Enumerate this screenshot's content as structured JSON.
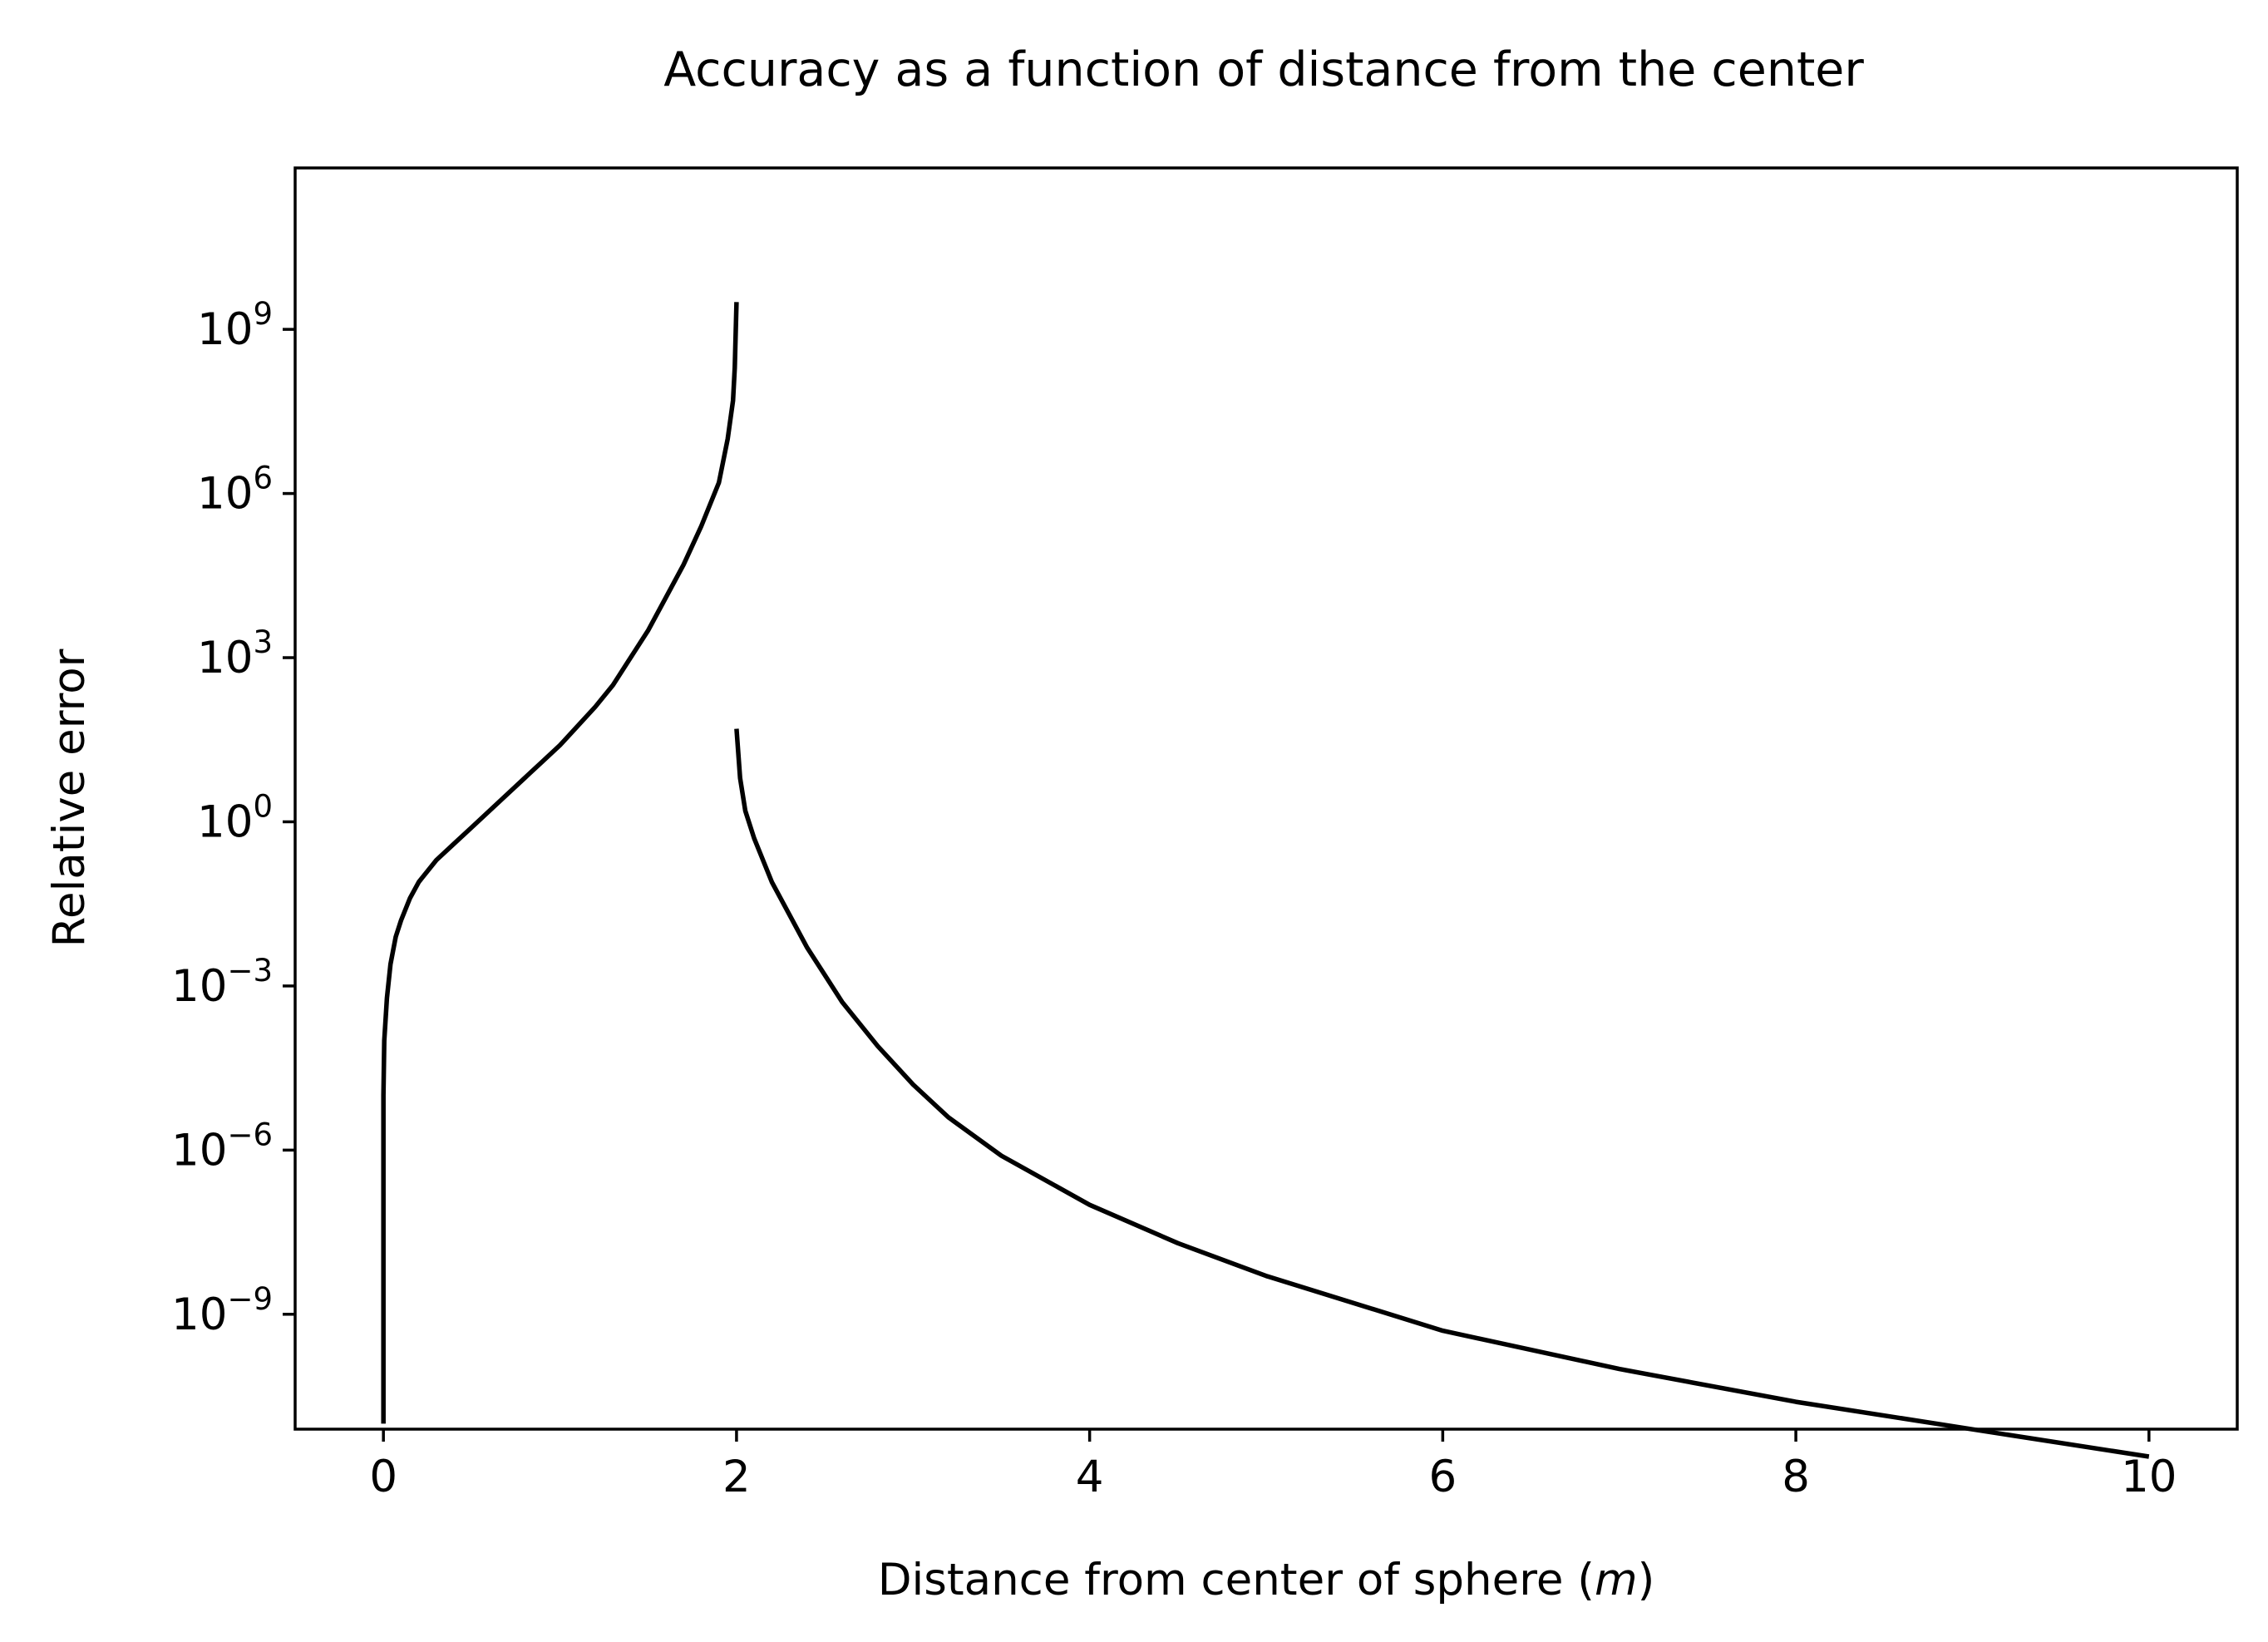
{
  "chart_data": {
    "type": "line",
    "title": "Accuracy as a function of distance from the center",
    "xlabel_text": "Distance from center of sphere (",
    "xlabel_unit": "m",
    "xlabel_close": ")",
    "ylabel": "Relative error",
    "xlim": [
      -0.5,
      10.5
    ],
    "ylim_log10": [
      -11.1,
      11.95
    ],
    "yscale": "log",
    "grid": false,
    "xticks": [
      {
        "value": 0,
        "label": "0"
      },
      {
        "value": 2,
        "label": "2"
      },
      {
        "value": 4,
        "label": "4"
      },
      {
        "value": 6,
        "label": "6"
      },
      {
        "value": 8,
        "label": "8"
      },
      {
        "value": 10,
        "label": "10"
      }
    ],
    "yticks": [
      {
        "log10": 9,
        "base": "10",
        "exp": "9"
      },
      {
        "log10": 6,
        "base": "10",
        "exp": "6"
      },
      {
        "log10": 3,
        "base": "10",
        "exp": "3"
      },
      {
        "log10": 0,
        "base": "10",
        "exp": "0"
      },
      {
        "log10": -3,
        "base": "10",
        "exp": "−3"
      },
      {
        "log10": -6,
        "base": "10",
        "exp": "−6"
      },
      {
        "log10": -9,
        "base": "10",
        "exp": "−9"
      }
    ],
    "line_color": "#000000",
    "series": [
      {
        "x": [
          0.0,
          0.0,
          0.005,
          0.02,
          0.04,
          0.07,
          0.1,
          0.15,
          0.2,
          0.3,
          0.4,
          0.5,
          0.6,
          0.7,
          0.8,
          0.9,
          1.0,
          1.1,
          1.2,
          1.3,
          1.4,
          1.5,
          1.6,
          1.7,
          1.8,
          1.9,
          1.95,
          1.98,
          1.99,
          2.0
        ],
        "y": [
          1e-11,
          1e-05,
          0.0001,
          0.0006,
          0.0025,
          0.0079,
          0.0158,
          0.0398,
          0.0794,
          0.2,
          0.398,
          0.794,
          1.58,
          3.16,
          6.31,
          12.6,
          25.1,
          56.2,
          126,
          316,
          1000,
          3160,
          12600,
          50100,
          251000,
          1580000,
          10000000,
          50100000,
          200000000,
          3160000000
        ]
      },
      {
        "x": [
          2.0,
          2.02,
          2.05,
          2.1,
          2.2,
          2.3,
          2.4,
          2.5,
          2.6,
          2.8,
          3.0,
          3.2,
          3.5,
          4.0,
          4.5,
          5.0,
          6.0,
          7.0,
          8.0,
          9.0,
          10.0
        ],
        "y": [
          50.1,
          6.31,
          1.58,
          0.5,
          0.0794,
          0.02,
          0.00501,
          0.00158,
          0.000501,
          7.94e-05,
          1.58e-05,
          3.98e-06,
          7.9e-07,
          1e-07,
          1.99e-08,
          5.01e-09,
          5e-10,
          1e-10,
          2.51e-11,
          7.9e-12,
          2.5e-12
        ]
      }
    ]
  }
}
